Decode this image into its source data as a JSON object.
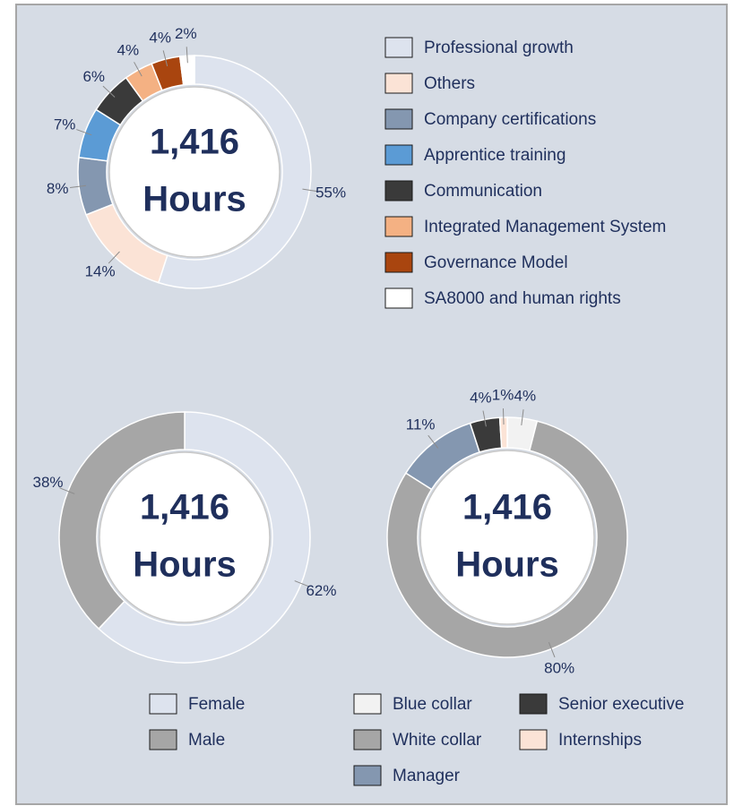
{
  "chart_data": [
    {
      "type": "pie",
      "center_value": "1,416",
      "center_unit": "Hours",
      "categories": [
        "Professional growth",
        "Others",
        "Company certifications",
        "Apprentice training",
        "Communication",
        "Integrated Management System",
        "Governance Model",
        "SA8000 and human rights"
      ],
      "values": [
        55,
        14,
        8,
        7,
        6,
        4,
        4,
        2
      ],
      "value_labels": [
        "55%",
        "14%",
        "8%",
        "7%",
        "6%",
        "4%",
        "4%",
        "2%"
      ],
      "colors": [
        "#dde3ee",
        "#fbe3d6",
        "#8497b0",
        "#5b9bd5",
        "#3a3a3a",
        "#f4b183",
        "#a9450f",
        "#ffffff"
      ]
    },
    {
      "type": "pie",
      "center_value": "1,416",
      "center_unit": "Hours",
      "categories": [
        "Female",
        "Male"
      ],
      "values": [
        62,
        38
      ],
      "value_labels": [
        "62%",
        "38%"
      ],
      "colors": [
        "#dde3ee",
        "#a6a6a6"
      ]
    },
    {
      "type": "pie",
      "center_value": "1,416",
      "center_unit": "Hours",
      "categories": [
        "Blue collar",
        "White collar",
        "Manager",
        "Senior executive",
        "Internships"
      ],
      "values": [
        4,
        80,
        11,
        4,
        1
      ],
      "value_labels": [
        "4%",
        "80%",
        "11%",
        "4%",
        "1%"
      ],
      "colors": [
        "#f2f2f2",
        "#a6a6a6",
        "#8497b0",
        "#3a3a3a",
        "#fbe3d6"
      ]
    }
  ]
}
